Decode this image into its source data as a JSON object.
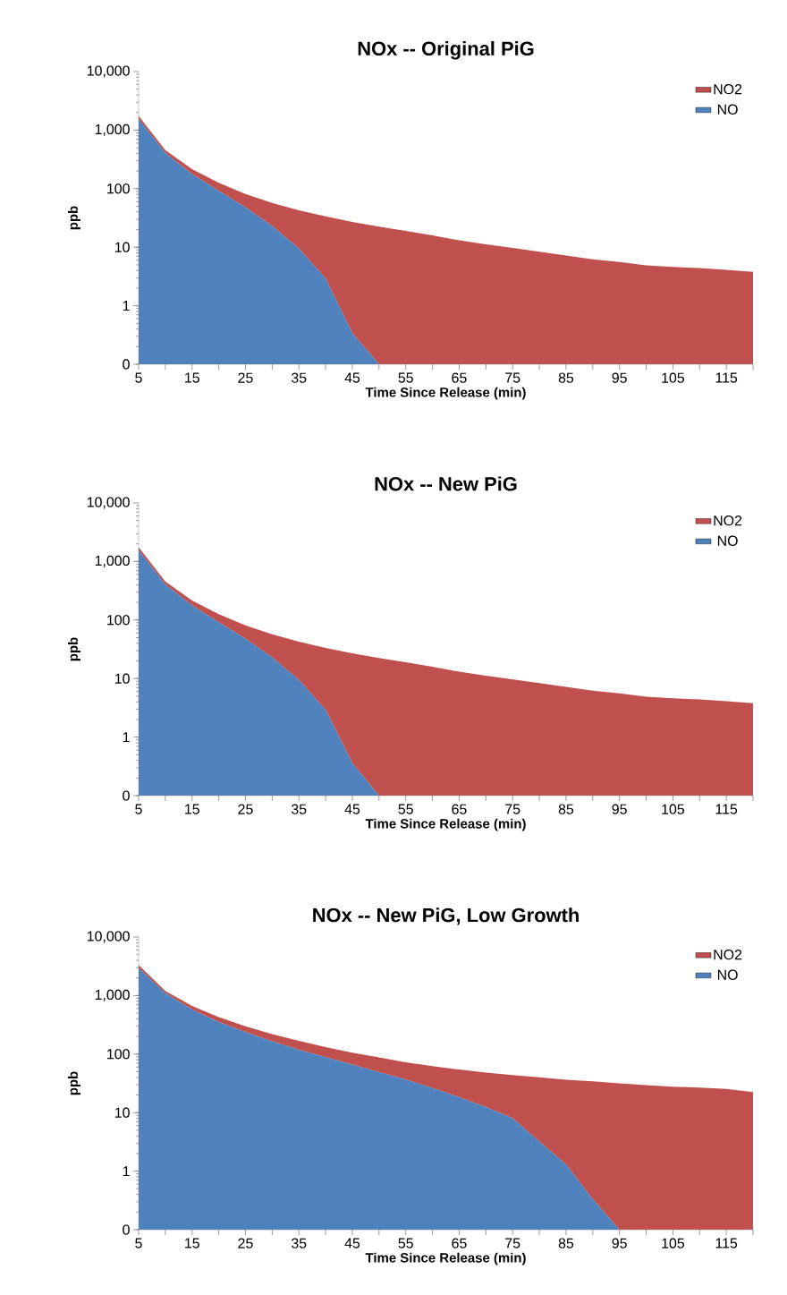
{
  "chart_data": [
    {
      "type": "area",
      "stacked": true,
      "log": "y",
      "title": "NOx -- Original PiG",
      "xlabel": "Time Since Release (min)",
      "ylabel": "ppb",
      "legend": "top right",
      "x": [
        5,
        10,
        15,
        20,
        25,
        30,
        35,
        40,
        45,
        50,
        55,
        60,
        65,
        70,
        75,
        80,
        85,
        90,
        95,
        100,
        105,
        110,
        115,
        120
      ],
      "xlim": [
        5,
        120
      ],
      "xticks": [
        5,
        {
          "value": 10,
          "label": null
        },
        15,
        {
          "value": 20,
          "label": null
        },
        25,
        {
          "value": 30,
          "label": null
        },
        35,
        {
          "value": 40,
          "label": null
        },
        45,
        {
          "value": 50,
          "label": null
        },
        55,
        {
          "value": 60,
          "label": null
        },
        65,
        {
          "value": 70,
          "label": null
        },
        75,
        {
          "value": 80,
          "label": null
        },
        85,
        {
          "value": 90,
          "label": null
        },
        95,
        {
          "value": 100,
          "label": null
        },
        105,
        {
          "value": 110,
          "label": null
        },
        115,
        {
          "value": 120,
          "label": null
        }
      ],
      "ylim": [
        0.1,
        10000
      ],
      "yticks": [
        {
          "value": 0.1,
          "label": "0"
        },
        1,
        10,
        100,
        {
          "value": 1000,
          "label": "1,000"
        },
        {
          "value": 10000,
          "label": "10,000"
        }
      ],
      "series": [
        {
          "name": "NO",
          "color": "#4f81bd",
          "values": [
            1550,
            407,
            177,
            92,
            48,
            23,
            9.5,
            2.9,
            0.34,
            0.1,
            null,
            null,
            null,
            null,
            null,
            null,
            null,
            null,
            null,
            null,
            null,
            null,
            null,
            null
          ]
        },
        {
          "name": "NO2",
          "color": "#c0504d",
          "values": [
            200,
            50,
            38,
            34,
            33,
            34,
            33,
            30.6,
            26.7,
            22.3,
            19,
            15.9,
            13.1,
            11.2,
            9.7,
            8.4,
            7.2,
            6.2,
            5.6,
            4.9,
            4.6,
            4.4,
            4.1,
            3.8
          ]
        }
      ]
    },
    {
      "type": "area",
      "stacked": true,
      "log": "y",
      "title": "NOx -- New PiG",
      "xlabel": "Time Since Release (min)",
      "ylabel": "ppb",
      "legend": "top right",
      "x": [
        5,
        10,
        15,
        20,
        25,
        30,
        35,
        40,
        45,
        50,
        55,
        60,
        65,
        70,
        75,
        80,
        85,
        90,
        95,
        100,
        105,
        110,
        115,
        120
      ],
      "xlim": [
        5,
        120
      ],
      "xticks": [
        5,
        {
          "value": 10,
          "label": null
        },
        15,
        {
          "value": 20,
          "label": null
        },
        25,
        {
          "value": 30,
          "label": null
        },
        35,
        {
          "value": 40,
          "label": null
        },
        45,
        {
          "value": 50,
          "label": null
        },
        55,
        {
          "value": 60,
          "label": null
        },
        65,
        {
          "value": 70,
          "label": null
        },
        75,
        {
          "value": 80,
          "label": null
        },
        85,
        {
          "value": 90,
          "label": null
        },
        95,
        {
          "value": 100,
          "label": null
        },
        105,
        {
          "value": 110,
          "label": null
        },
        115,
        {
          "value": 120,
          "label": null
        }
      ],
      "ylim": [
        0.1,
        10000
      ],
      "yticks": [
        {
          "value": 0.1,
          "label": "0"
        },
        1,
        10,
        100,
        {
          "value": 1000,
          "label": "1,000"
        },
        {
          "value": 10000,
          "label": "10,000"
        }
      ],
      "series": [
        {
          "name": "NO",
          "color": "#4f81bd",
          "values": [
            1550,
            407,
            177,
            92,
            48,
            23,
            9.5,
            2.9,
            0.36,
            0.1,
            null,
            null,
            null,
            null,
            null,
            null,
            null,
            null,
            null,
            null,
            null,
            null,
            null,
            null
          ]
        },
        {
          "name": "NO2",
          "color": "#c0504d",
          "values": [
            200,
            50,
            38,
            34,
            33,
            34,
            33,
            30.6,
            26.7,
            22.3,
            19,
            15.9,
            13.1,
            11.2,
            9.7,
            8.4,
            7.2,
            6.2,
            5.6,
            4.9,
            4.6,
            4.4,
            4.1,
            3.8
          ]
        }
      ]
    },
    {
      "type": "area",
      "stacked": true,
      "log": "y",
      "title": "NOx -- New PiG, Low Growth",
      "xlabel": "Time Since Release (min)",
      "ylabel": "ppb",
      "legend": "top right",
      "x": [
        5,
        10,
        15,
        20,
        25,
        30,
        35,
        40,
        45,
        50,
        55,
        60,
        65,
        70,
        75,
        80,
        85,
        90,
        95,
        100,
        105,
        110,
        115,
        120
      ],
      "xlim": [
        5,
        120
      ],
      "xticks": [
        5,
        {
          "value": 10,
          "label": null
        },
        15,
        {
          "value": 20,
          "label": null
        },
        25,
        {
          "value": 30,
          "label": null
        },
        35,
        {
          "value": 40,
          "label": null
        },
        45,
        {
          "value": 50,
          "label": null
        },
        55,
        {
          "value": 60,
          "label": null
        },
        65,
        {
          "value": 70,
          "label": null
        },
        75,
        {
          "value": 80,
          "label": null
        },
        85,
        {
          "value": 90,
          "label": null
        },
        95,
        {
          "value": 100,
          "label": null
        },
        105,
        {
          "value": 110,
          "label": null
        },
        115,
        {
          "value": 120,
          "label": null
        }
      ],
      "ylim": [
        0.1,
        10000
      ],
      "yticks": [
        {
          "value": 0.1,
          "label": "0"
        },
        1,
        10,
        100,
        {
          "value": 1000,
          "label": "1,000"
        },
        {
          "value": 10000,
          "label": "10,000"
        }
      ],
      "series": [
        {
          "name": "NO",
          "color": "#4f81bd",
          "values": [
            2970,
            1100,
            577,
            352,
            238,
            166,
            119,
            89,
            66,
            49,
            36.6,
            26.4,
            18.4,
            12.4,
            8,
            3.2,
            1.3,
            0.33,
            0.1,
            null,
            null,
            null,
            null,
            null
          ]
        },
        {
          "name": "NO2",
          "color": "#c0504d",
          "values": [
            360,
            100,
            90,
            77,
            61,
            53,
            49,
            43,
            40,
            39,
            36,
            36,
            36,
            36,
            36,
            37,
            35,
            34,
            31.6,
            29.6,
            27.7,
            26.8,
            25.5,
            22.4
          ]
        }
      ]
    }
  ]
}
